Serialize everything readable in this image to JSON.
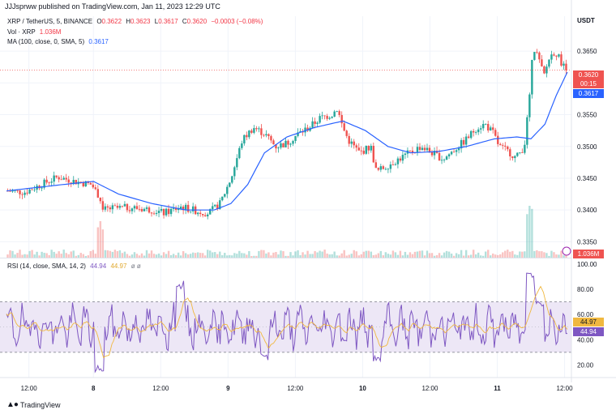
{
  "header": {
    "published": "JJJsprww published on TradingView.com, Jan 11, 2023 12:29 UTC"
  },
  "legend": {
    "symbol": "XRP / TetherUS, 5, BINANCE",
    "o_label": "O",
    "o_value": "0.3622",
    "h_label": "H",
    "h_value": "0.3623",
    "l_label": "L",
    "l_value": "0.3617",
    "c_label": "C",
    "c_value": "0.3620",
    "change": "−0.0003 (−0.08%)",
    "vol_label": "Vol · XRP",
    "vol_value": "1.036M",
    "ma_label": "MA (100, close, 0, SMA, 5)",
    "ma_value": "0.3617",
    "rsi_label": "RSI (14, close, SMA, 14, 2)",
    "rsi_value": "44.94",
    "rsi_ma_value": "44.97",
    "rsi_extra": "ø ø"
  },
  "badges": {
    "price": "0.3620",
    "countdown": "00:15",
    "ma": "0.3617",
    "volume": "1.036M",
    "rsi_ma": "44.97",
    "rsi": "44.94"
  },
  "axis": {
    "currency": "USDT"
  },
  "branding": {
    "name": "TradingView"
  },
  "colors": {
    "up": "#26a69a",
    "down": "#ef5350",
    "ma": "#2962ff",
    "rsi": "#7e57c2",
    "rsi_ma": "#f0b840",
    "rsi_band": "#ede7f6"
  },
  "chart_data": [
    {
      "type": "candlestick",
      "title": "XRP / TetherUS, 5, BINANCE",
      "ylim": [
        0.3325,
        0.3705
      ],
      "y_ticks": [
        "0.3650",
        "0.3600",
        "0.3550",
        "0.3500",
        "0.3450",
        "0.3400",
        "0.3350"
      ],
      "x_ticks": [
        "12:00",
        "8",
        "12:00",
        "9",
        "12:00",
        "10",
        "12:00",
        "11",
        "12:00"
      ],
      "close_path": [
        [
          0,
          0.343
        ],
        [
          0.03,
          0.3428
        ],
        [
          0.06,
          0.344
        ],
        [
          0.09,
          0.3452
        ],
        [
          0.12,
          0.3445
        ],
        [
          0.15,
          0.344
        ],
        [
          0.165,
          0.342
        ],
        [
          0.17,
          0.34
        ],
        [
          0.18,
          0.3402
        ],
        [
          0.22,
          0.3404
        ],
        [
          0.26,
          0.34
        ],
        [
          0.28,
          0.3395
        ],
        [
          0.31,
          0.3405
        ],
        [
          0.34,
          0.3398
        ],
        [
          0.36,
          0.3395
        ],
        [
          0.38,
          0.341
        ],
        [
          0.4,
          0.345
        ],
        [
          0.42,
          0.351
        ],
        [
          0.44,
          0.353
        ],
        [
          0.46,
          0.352
        ],
        [
          0.48,
          0.35
        ],
        [
          0.5,
          0.3505
        ],
        [
          0.52,
          0.352
        ],
        [
          0.54,
          0.353
        ],
        [
          0.56,
          0.3545
        ],
        [
          0.58,
          0.355
        ],
        [
          0.59,
          0.356
        ],
        [
          0.6,
          0.353
        ],
        [
          0.61,
          0.351
        ],
        [
          0.63,
          0.349
        ],
        [
          0.65,
          0.35
        ],
        [
          0.66,
          0.346
        ],
        [
          0.68,
          0.347
        ],
        [
          0.7,
          0.348
        ],
        [
          0.72,
          0.349
        ],
        [
          0.74,
          0.35
        ],
        [
          0.76,
          0.349
        ],
        [
          0.78,
          0.348
        ],
        [
          0.8,
          0.3495
        ],
        [
          0.82,
          0.351
        ],
        [
          0.84,
          0.353
        ],
        [
          0.855,
          0.3535
        ],
        [
          0.87,
          0.352
        ],
        [
          0.88,
          0.35
        ],
        [
          0.9,
          0.349
        ],
        [
          0.91,
          0.3482
        ],
        [
          0.925,
          0.35
        ],
        [
          0.935,
          0.358
        ],
        [
          0.94,
          0.366
        ],
        [
          0.95,
          0.364
        ],
        [
          0.96,
          0.361
        ],
        [
          0.97,
          0.364
        ],
        [
          0.98,
          0.365
        ],
        [
          1.0,
          0.362
        ]
      ],
      "ma_path": [
        [
          0,
          0.343
        ],
        [
          0.1,
          0.344
        ],
        [
          0.155,
          0.3445
        ],
        [
          0.2,
          0.3425
        ],
        [
          0.26,
          0.341
        ],
        [
          0.32,
          0.34
        ],
        [
          0.37,
          0.34
        ],
        [
          0.4,
          0.341
        ],
        [
          0.43,
          0.344
        ],
        [
          0.46,
          0.349
        ],
        [
          0.5,
          0.3515
        ],
        [
          0.55,
          0.353
        ],
        [
          0.6,
          0.354
        ],
        [
          0.64,
          0.3525
        ],
        [
          0.68,
          0.35
        ],
        [
          0.72,
          0.349
        ],
        [
          0.77,
          0.3492
        ],
        [
          0.82,
          0.35
        ],
        [
          0.87,
          0.3512
        ],
        [
          0.91,
          0.3515
        ],
        [
          0.935,
          0.3512
        ],
        [
          0.96,
          0.3535
        ],
        [
          0.98,
          0.358
        ],
        [
          1.0,
          0.3617
        ]
      ],
      "last_price": 0.362,
      "ma_last": 0.3617,
      "volume_last": "1.036M"
    },
    {
      "type": "line",
      "title": "RSI (14, close, SMA, 14, 2)",
      "ylim": [
        10,
        105
      ],
      "y_ticks": [
        "100.00",
        "80.00",
        "60.00",
        "40.00",
        "20.00"
      ],
      "band": [
        30,
        70
      ],
      "mid": 50,
      "spikes": [
        [
          0.165,
          16
        ],
        [
          0.31,
          84
        ],
        [
          0.46,
          27
        ],
        [
          0.66,
          24
        ],
        [
          0.935,
          93
        ],
        [
          0.95,
          68
        ]
      ],
      "rsi_last": 44.94,
      "rsi_ma_last": 44.97
    }
  ]
}
